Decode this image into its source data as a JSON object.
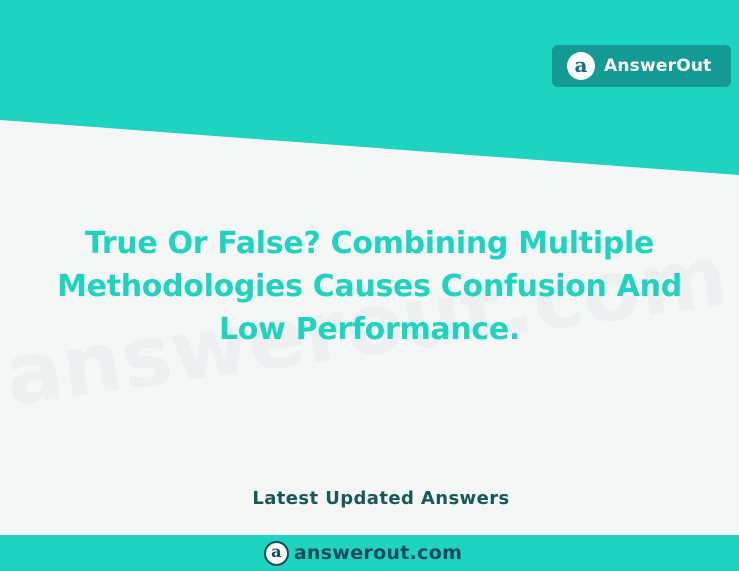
{
  "brand": {
    "logo_letter": "a",
    "name": "AnswerOut"
  },
  "question": {
    "title": "True Or False? Combining Multiple Methodologies Causes Confusion And Low Performance."
  },
  "section": {
    "label": "Latest Updated Answers"
  },
  "footer": {
    "logo_letter": "a",
    "domain": "answerout.com"
  },
  "watermark": {
    "text": "answerout.com"
  },
  "colors": {
    "teal": "#1fd3c1",
    "badge_teal": "#139a94",
    "dark_teal": "#165958",
    "navy": "#0f4a5e",
    "background": "#f5f6f6"
  }
}
